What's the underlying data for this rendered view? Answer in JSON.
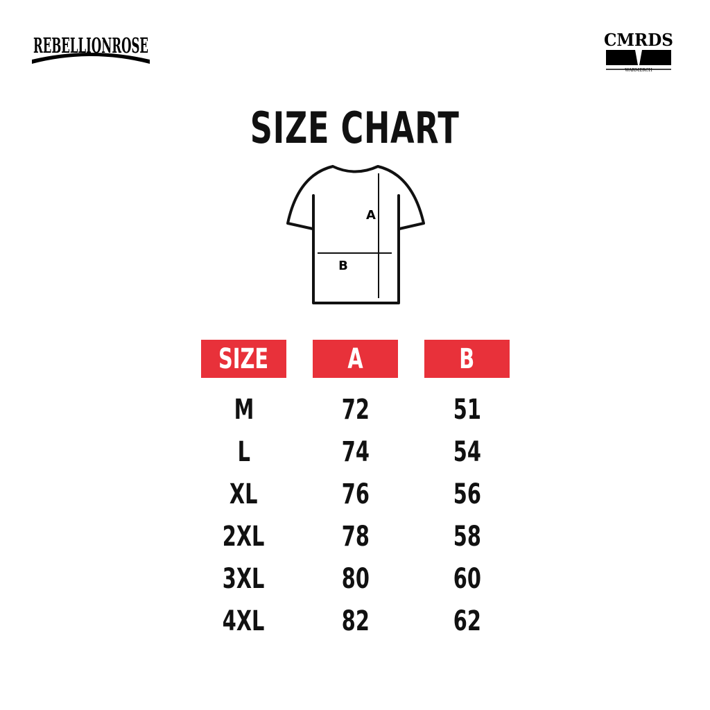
{
  "logos": {
    "left": "REBELLIONROSE",
    "right": "CMRDS",
    "right_sub": "WARMERCH"
  },
  "title": "SIZE CHART",
  "diagram": {
    "label_a": "A",
    "label_b": "B"
  },
  "table": {
    "header_color": "#e8313a",
    "headers": [
      "SIZE",
      "A",
      "B"
    ],
    "rows": [
      [
        "M",
        "72",
        "51"
      ],
      [
        "L",
        "74",
        "54"
      ],
      [
        "XL",
        "76",
        "56"
      ],
      [
        "2XL",
        "78",
        "58"
      ],
      [
        "3XL",
        "80",
        "60"
      ],
      [
        "4XL",
        "82",
        "62"
      ]
    ]
  }
}
